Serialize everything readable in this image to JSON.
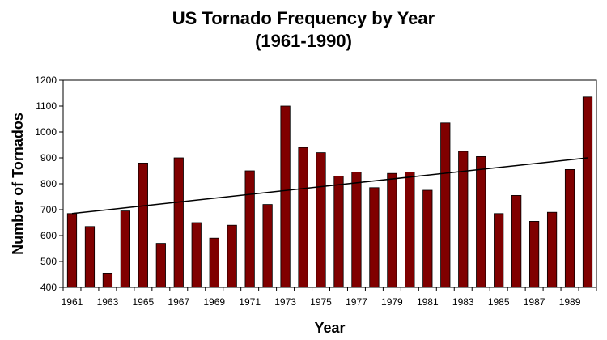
{
  "chart_data": {
    "type": "bar",
    "title": "US Tornado Frequency by Year",
    "subtitle": "(1961-1990)",
    "xlabel": "Year",
    "ylabel": "Number of Tornados",
    "ylim": [
      400,
      1200
    ],
    "y_ticks": [
      400,
      500,
      600,
      700,
      800,
      900,
      1000,
      1100,
      1200
    ],
    "x_tick_labels": [
      "1961",
      "1963",
      "1965",
      "1967",
      "1969",
      "1971",
      "1973",
      "1975",
      "1977",
      "1979",
      "1981",
      "1983",
      "1985",
      "1987",
      "1989"
    ],
    "categories": [
      1961,
      1962,
      1963,
      1964,
      1965,
      1966,
      1967,
      1968,
      1969,
      1970,
      1971,
      1972,
      1973,
      1974,
      1975,
      1976,
      1977,
      1978,
      1979,
      1980,
      1981,
      1982,
      1983,
      1984,
      1985,
      1986,
      1987,
      1988,
      1989,
      1990
    ],
    "values": [
      685,
      635,
      455,
      695,
      880,
      570,
      900,
      650,
      590,
      640,
      850,
      720,
      1100,
      940,
      920,
      830,
      845,
      785,
      840,
      845,
      775,
      1035,
      925,
      905,
      685,
      755,
      655,
      690,
      855,
      1135
    ],
    "bar_color": "#800000",
    "trendline": {
      "start": 685,
      "end": 900,
      "color": "#000000"
    },
    "grid": false,
    "legend": "none"
  }
}
